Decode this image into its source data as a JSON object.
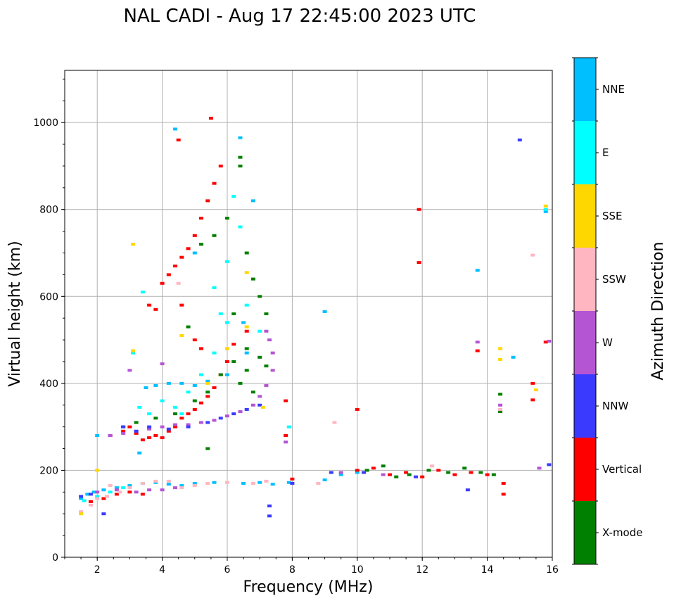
{
  "chart_data": {
    "type": "scatter",
    "title": "NAL CADI - Aug 17 22:45:00 2023 UTC",
    "xlabel": "Frequency (MHz)",
    "ylabel": "Virtual height (km)",
    "xlim": [
      1,
      16
    ],
    "ylim": [
      0,
      1120
    ],
    "xticks": [
      2,
      4,
      6,
      8,
      10,
      12,
      14,
      16
    ],
    "yticks": [
      0,
      200,
      400,
      600,
      800,
      1000
    ],
    "grid": true,
    "colorbar": {
      "label": "Azimuth Direction",
      "categories": [
        {
          "name": "X-mode",
          "color": "#008000"
        },
        {
          "name": "Vertical",
          "color": "#ff0000"
        },
        {
          "name": "NNW",
          "color": "#3a3aff"
        },
        {
          "name": "W",
          "color": "#b455d4"
        },
        {
          "name": "SSW",
          "color": "#ffb6c1"
        },
        {
          "name": "SSE",
          "color": "#ffd700"
        },
        {
          "name": "E",
          "color": "#00ffff"
        },
        {
          "name": "NNE",
          "color": "#00bfff"
        }
      ]
    },
    "series": [
      {
        "name": "NNE",
        "points": [
          [
            1.5,
            135
          ],
          [
            1.7,
            145
          ],
          [
            1.9,
            150
          ],
          [
            2.2,
            155
          ],
          [
            2.6,
            160
          ],
          [
            3.0,
            165
          ],
          [
            3.4,
            170
          ],
          [
            3.8,
            172
          ],
          [
            4.2,
            168
          ],
          [
            4.6,
            165
          ],
          [
            5.0,
            170
          ],
          [
            5.6,
            172
          ],
          [
            6.5,
            170
          ],
          [
            7.0,
            172
          ],
          [
            7.4,
            168
          ],
          [
            7.9,
            172
          ],
          [
            9.0,
            178
          ],
          [
            9.5,
            190
          ],
          [
            10.0,
            195
          ],
          [
            3.5,
            390
          ],
          [
            3.8,
            395
          ],
          [
            4.2,
            400
          ],
          [
            4.6,
            400
          ],
          [
            5.0,
            395
          ],
          [
            5.4,
            405
          ],
          [
            6.0,
            420
          ],
          [
            6.6,
            470
          ],
          [
            2.0,
            280
          ],
          [
            3.3,
            240
          ],
          [
            4.4,
            985
          ],
          [
            6.4,
            965
          ],
          [
            6.8,
            820
          ],
          [
            9.0,
            565
          ],
          [
            13.7,
            660
          ],
          [
            15.8,
            795
          ],
          [
            14.8,
            460
          ],
          [
            6.5,
            540
          ],
          [
            5.0,
            700
          ]
        ]
      },
      {
        "name": "E",
        "points": [
          [
            1.6,
            130
          ],
          [
            2.0,
            140
          ],
          [
            2.4,
            150
          ],
          [
            2.8,
            160
          ],
          [
            3.3,
            345
          ],
          [
            3.6,
            330
          ],
          [
            4.0,
            360
          ],
          [
            4.4,
            345
          ],
          [
            4.8,
            380
          ],
          [
            5.2,
            420
          ],
          [
            5.6,
            470
          ],
          [
            6.0,
            540
          ],
          [
            6.2,
            830
          ],
          [
            6.4,
            760
          ],
          [
            6.0,
            680
          ],
          [
            5.6,
            620
          ],
          [
            7.0,
            520
          ],
          [
            6.6,
            580
          ],
          [
            5.8,
            560
          ],
          [
            3.1,
            470
          ],
          [
            3.4,
            610
          ],
          [
            7.9,
            300
          ],
          [
            15.8,
            800
          ],
          [
            4.6,
            330
          ]
        ]
      },
      {
        "name": "Vertical",
        "points": [
          [
            1.8,
            128
          ],
          [
            2.2,
            135
          ],
          [
            2.6,
            145
          ],
          [
            3.0,
            150
          ],
          [
            3.4,
            145
          ],
          [
            2.4,
            280
          ],
          [
            2.8,
            290
          ],
          [
            3.0,
            300
          ],
          [
            3.2,
            285
          ],
          [
            3.4,
            270
          ],
          [
            3.6,
            275
          ],
          [
            3.8,
            280
          ],
          [
            4.0,
            275
          ],
          [
            4.2,
            290
          ],
          [
            4.4,
            300
          ],
          [
            4.6,
            320
          ],
          [
            4.8,
            330
          ],
          [
            5.0,
            340
          ],
          [
            5.2,
            355
          ],
          [
            5.4,
            370
          ],
          [
            5.6,
            390
          ],
          [
            5.8,
            420
          ],
          [
            6.0,
            450
          ],
          [
            6.2,
            490
          ],
          [
            6.6,
            520
          ],
          [
            3.8,
            570
          ],
          [
            4.0,
            630
          ],
          [
            4.2,
            650
          ],
          [
            4.4,
            670
          ],
          [
            4.6,
            690
          ],
          [
            4.8,
            710
          ],
          [
            5.0,
            740
          ],
          [
            5.2,
            780
          ],
          [
            5.4,
            820
          ],
          [
            5.6,
            860
          ],
          [
            5.8,
            900
          ],
          [
            5.5,
            1010
          ],
          [
            4.5,
            960
          ],
          [
            3.6,
            580
          ],
          [
            4.6,
            580
          ],
          [
            10.0,
            200
          ],
          [
            10.5,
            205
          ],
          [
            11.0,
            190
          ],
          [
            11.5,
            195
          ],
          [
            12.0,
            185
          ],
          [
            12.5,
            200
          ],
          [
            13.0,
            190
          ],
          [
            13.5,
            195
          ],
          [
            14.0,
            190
          ],
          [
            14.5,
            170
          ],
          [
            14.5,
            145
          ],
          [
            8.0,
            180
          ],
          [
            7.8,
            360
          ],
          [
            10.0,
            340
          ],
          [
            11.9,
            800
          ],
          [
            11.9,
            678
          ],
          [
            13.7,
            475
          ],
          [
            15.4,
            400
          ],
          [
            15.4,
            362
          ],
          [
            15.8,
            495
          ],
          [
            7.8,
            280
          ],
          [
            5.0,
            500
          ],
          [
            5.2,
            480
          ]
        ]
      },
      {
        "name": "X-mode",
        "points": [
          [
            2.8,
            300
          ],
          [
            3.2,
            310
          ],
          [
            3.8,
            320
          ],
          [
            4.4,
            330
          ],
          [
            5.0,
            360
          ],
          [
            5.4,
            380
          ],
          [
            5.8,
            420
          ],
          [
            6.2,
            450
          ],
          [
            6.6,
            480
          ],
          [
            7.0,
            460
          ],
          [
            7.2,
            440
          ],
          [
            6.4,
            400
          ],
          [
            6.8,
            380
          ],
          [
            5.2,
            720
          ],
          [
            5.6,
            740
          ],
          [
            6.0,
            780
          ],
          [
            6.4,
            920
          ],
          [
            6.4,
            900
          ],
          [
            6.6,
            700
          ],
          [
            6.8,
            640
          ],
          [
            7.0,
            600
          ],
          [
            7.2,
            560
          ],
          [
            10.3,
            200
          ],
          [
            10.8,
            210
          ],
          [
            11.2,
            185
          ],
          [
            11.6,
            190
          ],
          [
            12.2,
            200
          ],
          [
            12.8,
            195
          ],
          [
            13.3,
            205
          ],
          [
            13.8,
            195
          ],
          [
            14.2,
            190
          ],
          [
            14.4,
            335
          ],
          [
            14.4,
            375
          ],
          [
            5.4,
            250
          ],
          [
            6.2,
            560
          ],
          [
            6.6,
            430
          ],
          [
            4.8,
            530
          ]
        ]
      },
      {
        "name": "W",
        "points": [
          [
            2.4,
            280
          ],
          [
            2.8,
            285
          ],
          [
            3.2,
            290
          ],
          [
            3.6,
            295
          ],
          [
            4.0,
            300
          ],
          [
            4.4,
            305
          ],
          [
            4.8,
            305
          ],
          [
            5.2,
            310
          ],
          [
            5.6,
            315
          ],
          [
            6.0,
            325
          ],
          [
            6.4,
            335
          ],
          [
            6.8,
            350
          ],
          [
            7.0,
            370
          ],
          [
            7.2,
            395
          ],
          [
            7.4,
            430
          ],
          [
            7.4,
            470
          ],
          [
            7.3,
            500
          ],
          [
            7.2,
            520
          ],
          [
            2.0,
            150
          ],
          [
            2.6,
            155
          ],
          [
            3.2,
            150
          ],
          [
            3.6,
            155
          ],
          [
            4.0,
            155
          ],
          [
            4.4,
            160
          ],
          [
            9.5,
            195
          ],
          [
            10.8,
            190
          ],
          [
            13.7,
            495
          ],
          [
            14.4,
            350
          ],
          [
            15.9,
            497
          ],
          [
            15.6,
            205
          ],
          [
            7.8,
            265
          ],
          [
            4.0,
            445
          ],
          [
            3.0,
            430
          ]
        ]
      },
      {
        "name": "NNW",
        "points": [
          [
            1.5,
            140
          ],
          [
            1.8,
            145
          ],
          [
            2.8,
            300
          ],
          [
            3.2,
            290
          ],
          [
            3.6,
            300
          ],
          [
            4.2,
            295
          ],
          [
            4.8,
            300
          ],
          [
            5.4,
            310
          ],
          [
            5.8,
            320
          ],
          [
            6.2,
            330
          ],
          [
            6.6,
            340
          ],
          [
            7.0,
            350
          ],
          [
            9.2,
            195
          ],
          [
            10.2,
            195
          ],
          [
            11.8,
            185
          ],
          [
            13.4,
            155
          ],
          [
            15.0,
            960
          ],
          [
            15.9,
            213
          ],
          [
            7.3,
            95
          ],
          [
            7.3,
            118
          ],
          [
            8.0,
            170
          ],
          [
            2.2,
            100
          ]
        ]
      },
      {
        "name": "SSW",
        "points": [
          [
            1.5,
            105
          ],
          [
            1.8,
            120
          ],
          [
            2.0,
            135
          ],
          [
            2.3,
            140
          ],
          [
            2.7,
            150
          ],
          [
            3.0,
            160
          ],
          [
            3.4,
            170
          ],
          [
            3.8,
            175
          ],
          [
            4.2,
            175
          ],
          [
            4.6,
            160
          ],
          [
            5.0,
            165
          ],
          [
            5.4,
            170
          ],
          [
            6.0,
            172
          ],
          [
            6.8,
            170
          ],
          [
            7.2,
            175
          ],
          [
            8.8,
            170
          ],
          [
            9.3,
            310
          ],
          [
            12.3,
            210
          ],
          [
            14.4,
            340
          ],
          [
            15.4,
            695
          ],
          [
            2.4,
            165
          ],
          [
            4.5,
            630
          ]
        ]
      },
      {
        "name": "SSE",
        "points": [
          [
            1.5,
            100
          ],
          [
            2.0,
            200
          ],
          [
            3.1,
            720
          ],
          [
            3.1,
            475
          ],
          [
            6.6,
            530
          ],
          [
            6.0,
            480
          ],
          [
            6.6,
            655
          ],
          [
            7.1,
            345
          ],
          [
            14.4,
            455
          ],
          [
            14.4,
            480
          ],
          [
            15.5,
            385
          ],
          [
            15.8,
            808
          ],
          [
            5.4,
            400
          ],
          [
            4.6,
            510
          ]
        ]
      }
    ]
  }
}
